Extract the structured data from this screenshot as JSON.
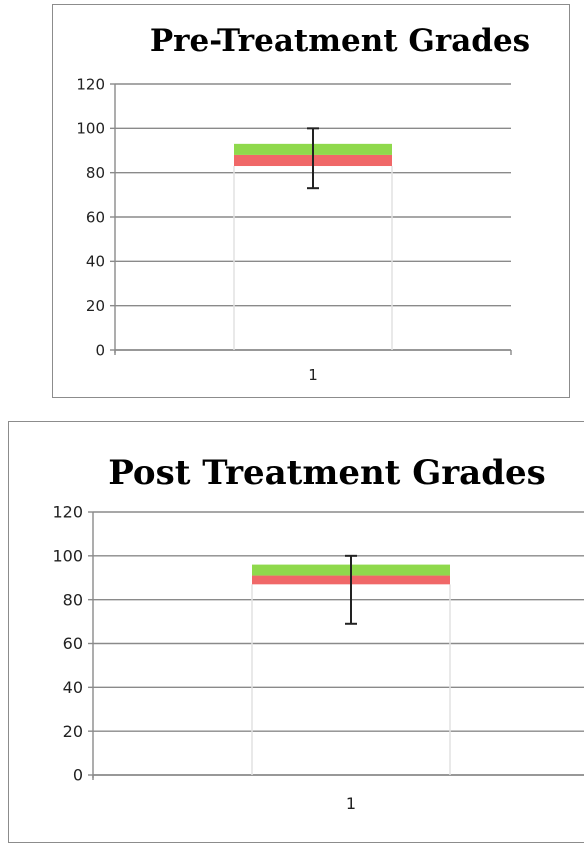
{
  "chart_data": [
    {
      "type": "bar",
      "title": "Pre-Treatment Grades",
      "categories": [
        "1"
      ],
      "ylim": [
        0,
        120
      ],
      "yticks": [
        "0",
        "20",
        "40",
        "60",
        "80",
        "100",
        "120"
      ],
      "grid": true,
      "legend": "none",
      "boxes": [
        {
          "category": "1",
          "low": 83,
          "mid": 88,
          "high": 93,
          "whisker_low": 73,
          "whisker_high": 100
        }
      ],
      "colors": {
        "lower": "#f06868",
        "upper": "#8fd94c"
      }
    },
    {
      "type": "bar",
      "title": "Post Treatment Grades",
      "categories": [
        "1"
      ],
      "ylim": [
        0,
        120
      ],
      "yticks": [
        "0",
        "20",
        "40",
        "60",
        "80",
        "100",
        "120"
      ],
      "grid": true,
      "legend": "none",
      "boxes": [
        {
          "category": "1",
          "low": 87,
          "mid": 91,
          "high": 96,
          "whisker_low": 69,
          "whisker_high": 100
        }
      ],
      "colors": {
        "lower": "#f06868",
        "upper": "#8fd94c"
      }
    }
  ]
}
